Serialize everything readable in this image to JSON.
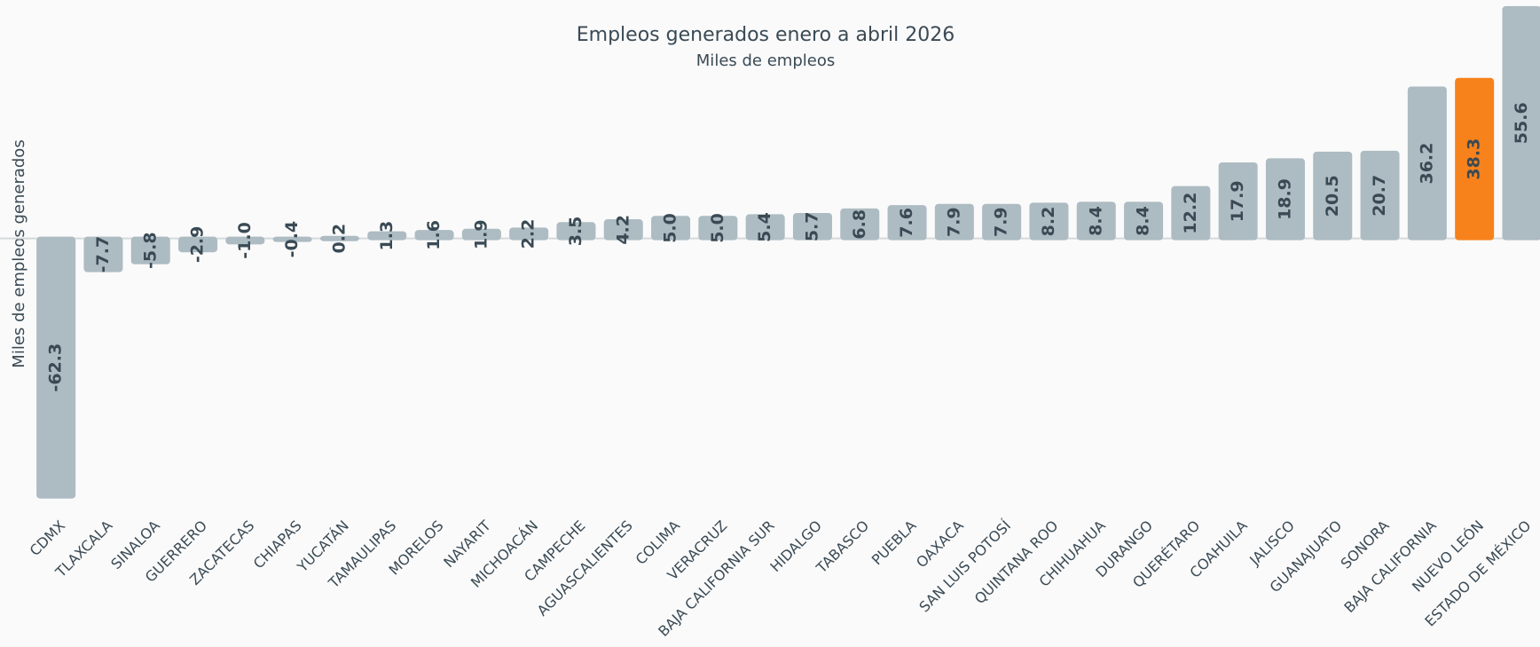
{
  "chart_data": {
    "type": "bar",
    "title": "Empleos generados enero a abril 2026",
    "subtitle": "Miles de empleos",
    "y_label": "Miles de empleos generados",
    "categories": [
      "CDMX",
      "TLAXCALA",
      "SINALOA",
      "GUERRERO",
      "ZACATECAS",
      "CHIAPAS",
      "YUCATÁN",
      "TAMAULIPAS",
      "MORELOS",
      "NAYARIT",
      "MICHOACÁN",
      "CAMPECHE",
      "AGUASCALIENTES",
      "COLIMA",
      "VERACRUZ",
      "BAJA CALIFORNIA SUR",
      "HIDALGO",
      "TABASCO",
      "PUEBLA",
      "OAXACA",
      "SAN LUIS POTOSÍ",
      "QUINTANA ROO",
      "CHIHUAHUA",
      "DURANGO",
      "QUERÉTARO",
      "COAHUILA",
      "JALISCO",
      "GUANAJUATO",
      "SONORA",
      "BAJA CALIFORNIA",
      "NUEVO LEÓN",
      "ESTADO DE MÉXICO"
    ],
    "values": [
      -62.3,
      -7.7,
      -5.8,
      -2.9,
      -1.0,
      -0.4,
      0.2,
      1.3,
      1.6,
      1.9,
      2.2,
      3.5,
      4.2,
      5.0,
      5.0,
      5.4,
      5.7,
      6.8,
      7.6,
      7.9,
      7.9,
      8.2,
      8.4,
      8.4,
      12.2,
      17.9,
      18.9,
      20.5,
      20.7,
      36.2,
      38.3,
      55.6
    ],
    "value_labels": [
      "-62.3",
      "-7.7",
      "-5.8",
      "-2.9",
      "-1.0",
      "-0.4",
      "0.2",
      "1.3",
      "1.6",
      "1.9",
      "2.2",
      "3.5",
      "4.2",
      "5.0",
      "5.0",
      "5.4",
      "5.7",
      "6.8",
      "7.6",
      "7.9",
      "7.9",
      "8.2",
      "8.4",
      "8.4",
      "12.2",
      "17.9",
      "18.9",
      "20.5",
      "20.7",
      "36.2",
      "38.3",
      "55.6"
    ],
    "colors": [
      "#adbbc2",
      "#adbbc2",
      "#adbbc2",
      "#adbbc2",
      "#adbbc2",
      "#adbbc2",
      "#adbbc2",
      "#adbbc2",
      "#adbbc2",
      "#adbbc2",
      "#adbbc2",
      "#adbbc2",
      "#adbbc2",
      "#adbbc2",
      "#adbbc2",
      "#adbbc2",
      "#adbbc2",
      "#adbbc2",
      "#adbbc2",
      "#adbbc2",
      "#adbbc2",
      "#adbbc2",
      "#adbbc2",
      "#adbbc2",
      "#adbbc2",
      "#adbbc2",
      "#adbbc2",
      "#adbbc2",
      "#adbbc2",
      "#adbbc2",
      "#f7821b",
      "#adbbc2"
    ],
    "ylim": [
      -63,
      56
    ]
  }
}
